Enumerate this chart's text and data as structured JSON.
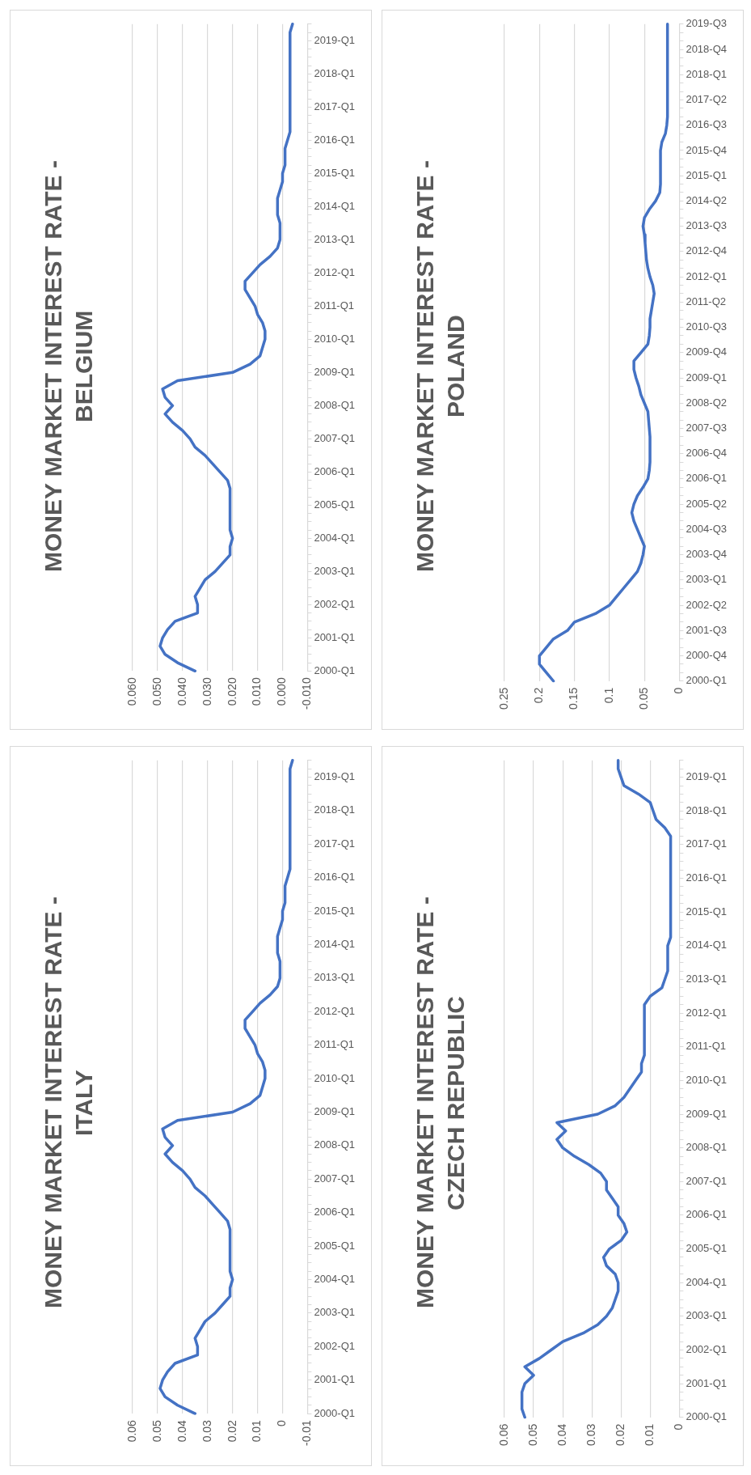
{
  "chart_data": [
    {
      "type": "line",
      "orientation": "horizontal",
      "title": "MONEY MARKET INTEREST RATE - ITALY",
      "color": "#4472c4",
      "grid": "x",
      "categories": [
        null,
        null,
        "2019-Q1",
        null,
        null,
        null,
        "2018-Q1",
        null,
        null,
        null,
        "2017-Q1",
        null,
        null,
        null,
        "2016-Q1",
        null,
        null,
        null,
        "2015-Q1",
        null,
        null,
        null,
        "2014-Q1",
        null,
        null,
        null,
        "2013-Q1",
        null,
        null,
        null,
        "2012-Q1",
        null,
        null,
        null,
        "2011-Q1",
        null,
        null,
        null,
        "2010-Q1",
        null,
        null,
        null,
        "2009-Q1",
        null,
        null,
        null,
        "2008-Q1",
        null,
        null,
        null,
        "2007-Q1",
        null,
        null,
        null,
        "2006-Q1",
        null,
        null,
        null,
        "2005-Q1",
        null,
        null,
        null,
        "2004-Q1",
        null,
        null,
        null,
        "2003-Q1",
        null,
        null,
        null,
        "2002-Q1",
        null,
        null,
        null,
        "2001-Q1",
        null,
        null,
        null,
        "2000-Q1"
      ],
      "values": [
        -0.004,
        -0.003,
        -0.003,
        -0.003,
        -0.003,
        -0.003,
        -0.003,
        -0.003,
        -0.003,
        -0.003,
        -0.003,
        -0.003,
        -0.003,
        -0.003,
        -0.002,
        -0.001,
        -0.001,
        -0.001,
        0.0,
        0.0,
        0.001,
        0.002,
        0.002,
        0.002,
        0.001,
        0.001,
        0.001,
        0.002,
        0.005,
        0.009,
        0.012,
        0.015,
        0.015,
        0.013,
        0.011,
        0.01,
        0.008,
        0.007,
        0.007,
        0.008,
        0.009,
        0.013,
        0.02,
        0.042,
        0.048,
        0.047,
        0.044,
        0.047,
        0.044,
        0.04,
        0.037,
        0.035,
        0.031,
        0.028,
        0.025,
        0.022,
        0.021,
        0.021,
        0.021,
        0.021,
        0.021,
        0.021,
        0.02,
        0.021,
        0.021,
        0.024,
        0.027,
        0.031,
        0.033,
        0.035,
        0.034,
        0.034,
        0.043,
        0.046,
        0.048,
        0.049,
        0.047,
        0.042,
        0.035
      ],
      "xlim": [
        0.06,
        -0.01
      ],
      "xticks": [
        0.06,
        0.05,
        0.04,
        0.03,
        0.02,
        0.01,
        0,
        -0.01
      ]
    },
    {
      "type": "line",
      "orientation": "horizontal",
      "title": "MONEY MARKET INTEREST RATE - BELGIUM",
      "color": "#4472c4",
      "grid": "x",
      "categories": [
        null,
        null,
        "2019-Q1",
        null,
        null,
        null,
        "2018-Q1",
        null,
        null,
        null,
        "2017-Q1",
        null,
        null,
        null,
        "2016-Q1",
        null,
        null,
        null,
        "2015-Q1",
        null,
        null,
        null,
        "2014-Q1",
        null,
        null,
        null,
        "2013-Q1",
        null,
        null,
        null,
        "2012-Q1",
        null,
        null,
        null,
        "2011-Q1",
        null,
        null,
        null,
        "2010-Q1",
        null,
        null,
        null,
        "2009-Q1",
        null,
        null,
        null,
        "2008-Q1",
        null,
        null,
        null,
        "2007-Q1",
        null,
        null,
        null,
        "2006-Q1",
        null,
        null,
        null,
        "2005-Q1",
        null,
        null,
        null,
        "2004-Q1",
        null,
        null,
        null,
        "2003-Q1",
        null,
        null,
        null,
        "2002-Q1",
        null,
        null,
        null,
        "2001-Q1",
        null,
        null,
        null,
        "2000-Q1"
      ],
      "values": [
        -0.004,
        -0.003,
        -0.003,
        -0.003,
        -0.003,
        -0.003,
        -0.003,
        -0.003,
        -0.003,
        -0.003,
        -0.003,
        -0.003,
        -0.003,
        -0.003,
        -0.002,
        -0.001,
        -0.001,
        -0.001,
        0.0,
        0.0,
        0.001,
        0.002,
        0.002,
        0.002,
        0.001,
        0.001,
        0.001,
        0.002,
        0.005,
        0.009,
        0.012,
        0.015,
        0.015,
        0.013,
        0.011,
        0.01,
        0.008,
        0.007,
        0.007,
        0.008,
        0.009,
        0.013,
        0.02,
        0.042,
        0.048,
        0.047,
        0.044,
        0.047,
        0.044,
        0.04,
        0.037,
        0.035,
        0.031,
        0.028,
        0.025,
        0.022,
        0.021,
        0.021,
        0.021,
        0.021,
        0.021,
        0.021,
        0.02,
        0.021,
        0.021,
        0.024,
        0.027,
        0.031,
        0.033,
        0.035,
        0.034,
        0.034,
        0.043,
        0.046,
        0.048,
        0.049,
        0.047,
        0.042,
        0.035
      ],
      "xlim": [
        0.06,
        -0.01
      ],
      "xticks": [
        {
          "value": 0.06,
          "label": "0.060"
        },
        {
          "value": 0.05,
          "label": "0.050"
        },
        {
          "value": 0.04,
          "label": "0.040"
        },
        {
          "value": 0.03,
          "label": "0.030"
        },
        {
          "value": 0.02,
          "label": "0.020"
        },
        {
          "value": 0.01,
          "label": "0.010"
        },
        {
          "value": 0,
          "label": "0.000"
        },
        {
          "value": -0.01,
          "label": "-0.010"
        }
      ]
    },
    {
      "type": "line",
      "orientation": "horizontal",
      "title": "MONEY MARKET INTEREST RATE - CZECH REPUBLIC",
      "color": "#4472c4",
      "grid": "x",
      "categories": [
        null,
        null,
        "2019-Q1",
        null,
        null,
        null,
        "2018-Q1",
        null,
        null,
        null,
        "2017-Q1",
        null,
        null,
        null,
        "2016-Q1",
        null,
        null,
        null,
        "2015-Q1",
        null,
        null,
        null,
        "2014-Q1",
        null,
        null,
        null,
        "2013-Q1",
        null,
        null,
        null,
        "2012-Q1",
        null,
        null,
        null,
        "2011-Q1",
        null,
        null,
        null,
        "2010-Q1",
        null,
        null,
        null,
        "2009-Q1",
        null,
        null,
        null,
        "2008-Q1",
        null,
        null,
        null,
        "2007-Q1",
        null,
        null,
        null,
        "2006-Q1",
        null,
        null,
        null,
        "2005-Q1",
        null,
        null,
        null,
        "2004-Q1",
        null,
        null,
        null,
        "2003-Q1",
        null,
        null,
        null,
        "2002-Q1",
        null,
        null,
        null,
        "2001-Q1",
        null,
        null,
        null,
        "2000-Q1"
      ],
      "values": [
        0.021,
        0.021,
        0.02,
        0.019,
        0.014,
        0.01,
        0.009,
        0.008,
        0.005,
        0.003,
        0.003,
        0.003,
        0.003,
        0.003,
        0.003,
        0.003,
        0.003,
        0.003,
        0.003,
        0.003,
        0.003,
        0.003,
        0.004,
        0.004,
        0.004,
        0.004,
        0.005,
        0.006,
        0.01,
        0.012,
        0.012,
        0.012,
        0.012,
        0.012,
        0.012,
        0.012,
        0.013,
        0.013,
        0.015,
        0.017,
        0.019,
        0.022,
        0.028,
        0.042,
        0.039,
        0.042,
        0.04,
        0.036,
        0.031,
        0.027,
        0.025,
        0.025,
        0.023,
        0.021,
        0.021,
        0.019,
        0.018,
        0.02,
        0.024,
        0.026,
        0.025,
        0.022,
        0.021,
        0.021,
        0.022,
        0.023,
        0.025,
        0.028,
        0.033,
        0.04,
        0.044,
        0.048,
        0.053,
        0.05,
        0.053,
        0.054,
        0.054,
        0.054,
        0.053
      ],
      "xlim": [
        0.06,
        0
      ],
      "xticks": [
        0.06,
        0.05,
        0.04,
        0.03,
        0.02,
        0.01,
        0
      ]
    },
    {
      "type": "line",
      "orientation": "horizontal",
      "title": "MONEY MARKET INTEREST RATE - POLAND",
      "color": "#4472c4",
      "grid": "x",
      "categories": [
        "2019-Q3",
        null,
        null,
        "2018-Q4",
        null,
        null,
        "2018-Q1",
        null,
        null,
        "2017-Q2",
        null,
        null,
        "2016-Q3",
        null,
        null,
        "2015-Q4",
        null,
        null,
        "2015-Q1",
        null,
        null,
        "2014-Q2",
        null,
        null,
        "2013-Q3",
        null,
        null,
        "2012-Q4",
        null,
        null,
        "2012-Q1",
        null,
        null,
        "2011-Q2",
        null,
        null,
        "2010-Q3",
        null,
        null,
        "2009-Q4",
        null,
        null,
        "2009-Q1",
        null,
        null,
        "2008-Q2",
        null,
        null,
        "2007-Q3",
        null,
        null,
        "2006-Q4",
        null,
        null,
        "2006-Q1",
        null,
        null,
        "2005-Q2",
        null,
        null,
        "2004-Q3",
        null,
        null,
        "2003-Q4",
        null,
        null,
        "2003-Q1",
        null,
        null,
        "2002-Q2",
        null,
        null,
        "2001-Q3",
        null,
        null,
        "2000-Q4",
        null,
        null,
        "2000-Q1"
      ],
      "values": [
        0.017,
        0.017,
        0.017,
        0.017,
        0.017,
        0.017,
        0.017,
        0.017,
        0.017,
        0.017,
        0.017,
        0.017,
        0.018,
        0.02,
        0.025,
        0.027,
        0.027,
        0.027,
        0.027,
        0.027,
        0.028,
        0.034,
        0.043,
        0.05,
        0.052,
        0.05,
        0.049,
        0.048,
        0.047,
        0.045,
        0.042,
        0.038,
        0.036,
        0.038,
        0.04,
        0.042,
        0.042,
        0.043,
        0.045,
        0.055,
        0.065,
        0.065,
        0.062,
        0.058,
        0.055,
        0.05,
        0.045,
        0.044,
        0.043,
        0.042,
        0.042,
        0.042,
        0.042,
        0.043,
        0.045,
        0.052,
        0.06,
        0.065,
        0.068,
        0.065,
        0.06,
        0.055,
        0.05,
        0.052,
        0.055,
        0.06,
        0.07,
        0.08,
        0.09,
        0.1,
        0.12,
        0.15,
        0.16,
        0.18,
        0.19,
        0.2,
        0.2,
        0.19,
        0.18
      ],
      "xlim": [
        0.25,
        0
      ],
      "xticks": [
        0.25,
        0.2,
        0.15,
        0.1,
        0.05,
        0
      ]
    }
  ]
}
